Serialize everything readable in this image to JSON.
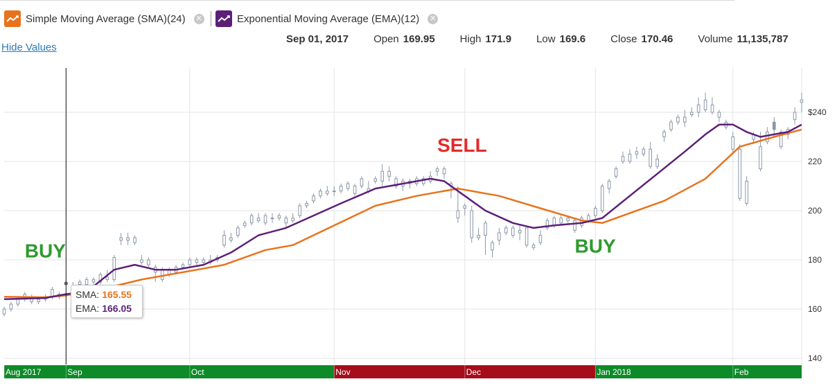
{
  "legend": {
    "sma": {
      "label": "Simple Moving Average (SMA)(24)",
      "icon": "trend-line-icon",
      "color": "#e8731c"
    },
    "ema": {
      "label": "Exponential Moving Average (EMA)(12)",
      "icon": "trend-line-icon",
      "color": "#5c1f78"
    }
  },
  "hide_values_label": "Hide Values",
  "quote": {
    "date": "Sep 01, 2017",
    "open_label": "Open",
    "open": "169.95",
    "high_label": "High",
    "high": "171.9",
    "low_label": "Low",
    "low": "169.6",
    "close_label": "Close",
    "close": "170.46",
    "volume_label": "Volume",
    "volume": "11,135,787"
  },
  "tooltip": {
    "sma_label": "SMA:",
    "sma_value": "165.55",
    "ema_label": "EMA:",
    "ema_value": "166.05"
  },
  "colors": {
    "sma": "#e8731c",
    "ema": "#5c1f78",
    "candle": "#8a96a8",
    "buy": "#2e9a2e",
    "sell": "#e52a2a",
    "band_green": "#0e8a28",
    "band_red": "#a50d1a"
  },
  "chart_data": {
    "type": "candlestick",
    "ylim": [
      136,
      252
    ],
    "y_ticks": [
      "140",
      "160",
      "180",
      "200",
      "220",
      "$240"
    ],
    "y_tick_values": [
      140,
      160,
      180,
      200,
      220,
      240
    ],
    "x_labels": [
      {
        "label": "Aug 2017",
        "day": 0
      },
      {
        "label": "Sep",
        "day": 9
      },
      {
        "label": "Oct",
        "day": 27
      },
      {
        "label": "Nov",
        "day": 48
      },
      {
        "label": "Dec",
        "day": 67
      },
      {
        "label": "Jan 2018",
        "day": 86
      },
      {
        "label": "Feb",
        "day": 106
      }
    ],
    "days_total": 116,
    "cursor_day": 9,
    "cursor_value": 170.46,
    "signals": [
      {
        "label": "BUY",
        "type": "buy",
        "day": 3,
        "value": 181
      },
      {
        "label": "SELL",
        "type": "sell",
        "day": 63,
        "value": 224
      },
      {
        "label": "BUY",
        "type": "buy",
        "day": 83,
        "value": 183
      }
    ],
    "bands": [
      {
        "from": 0,
        "to": 48,
        "type": "buy"
      },
      {
        "from": 48,
        "to": 86,
        "type": "sell"
      },
      {
        "from": 86,
        "to": 116,
        "type": "buy"
      }
    ],
    "candles": [
      [
        0,
        158,
        160,
        157,
        161
      ],
      [
        1,
        160,
        162,
        159,
        163
      ],
      [
        2,
        162,
        164,
        161,
        165
      ],
      [
        3,
        164,
        166,
        163,
        167
      ],
      [
        4,
        163,
        165,
        162,
        166
      ],
      [
        5,
        163,
        164,
        162,
        165
      ],
      [
        6,
        164,
        165,
        163,
        166
      ],
      [
        7,
        165,
        168,
        164,
        169
      ],
      [
        8,
        165,
        166,
        164,
        167
      ],
      [
        9,
        169.95,
        170.46,
        169.6,
        171.9
      ],
      [
        10,
        168,
        169,
        167,
        171
      ],
      [
        11,
        170,
        171,
        169,
        172
      ],
      [
        12,
        170,
        172,
        169,
        173
      ],
      [
        13,
        171,
        172,
        170,
        173
      ],
      [
        14,
        171,
        174,
        170,
        175
      ],
      [
        15,
        172,
        173,
        171,
        176
      ],
      [
        16,
        172,
        181,
        171,
        182
      ],
      [
        17,
        188,
        189,
        186,
        191
      ],
      [
        18,
        188,
        189,
        186,
        191
      ],
      [
        19,
        187,
        189,
        186,
        190
      ],
      [
        20,
        179,
        180,
        178,
        182
      ],
      [
        21,
        178,
        180,
        177,
        181
      ],
      [
        22,
        175,
        177,
        171,
        178
      ],
      [
        23,
        172,
        176,
        171,
        177
      ],
      [
        24,
        174,
        176,
        173,
        177
      ],
      [
        25,
        175,
        177,
        174,
        178
      ],
      [
        26,
        177,
        178,
        176,
        179
      ],
      [
        27,
        178,
        180,
        177,
        181
      ],
      [
        28,
        179,
        180,
        178,
        181
      ],
      [
        29,
        179,
        180,
        178,
        181
      ],
      [
        30,
        179,
        180,
        178,
        182
      ],
      [
        31,
        180,
        181,
        179,
        182
      ],
      [
        32,
        186,
        190,
        185,
        192
      ],
      [
        33,
        188,
        189,
        187,
        191
      ],
      [
        34,
        190,
        193,
        189,
        194
      ],
      [
        35,
        194,
        195,
        193,
        196
      ],
      [
        36,
        195,
        198,
        194,
        199
      ],
      [
        37,
        196,
        197,
        195,
        199
      ],
      [
        38,
        195,
        198,
        194,
        199
      ],
      [
        39,
        197,
        197,
        195,
        199
      ],
      [
        40,
        197,
        198,
        196,
        199
      ],
      [
        41,
        195,
        197,
        193,
        198
      ],
      [
        42,
        196,
        197,
        195,
        199
      ],
      [
        43,
        198,
        202,
        197,
        203
      ],
      [
        44,
        202,
        203,
        201,
        204
      ],
      [
        45,
        204,
        206,
        203,
        207
      ],
      [
        46,
        206,
        208,
        205,
        209
      ],
      [
        47,
        207,
        208,
        206,
        210
      ],
      [
        48,
        208,
        208,
        206,
        210
      ],
      [
        49,
        208,
        210,
        207,
        211
      ],
      [
        50,
        209,
        211,
        208,
        212
      ],
      [
        51,
        207,
        210,
        206,
        211
      ],
      [
        52,
        210,
        213,
        209,
        214
      ],
      [
        53,
        208,
        209,
        207,
        212
      ],
      [
        54,
        212,
        213,
        211,
        214
      ],
      [
        55,
        212,
        216,
        210,
        219
      ],
      [
        56,
        214,
        216,
        212,
        218
      ],
      [
        57,
        210,
        213,
        209,
        214
      ],
      [
        58,
        210,
        212,
        208,
        213
      ],
      [
        59,
        211,
        212,
        209,
        213
      ],
      [
        60,
        211,
        213,
        210,
        214
      ],
      [
        61,
        211,
        213,
        210,
        214
      ],
      [
        62,
        212,
        214,
        211,
        216
      ],
      [
        63,
        216,
        217,
        214,
        218
      ],
      [
        64,
        215,
        217,
        213,
        218
      ],
      [
        65,
        210,
        211,
        205,
        212
      ],
      [
        66,
        197,
        200,
        195,
        210
      ],
      [
        67,
        201,
        202,
        198,
        203
      ],
      [
        68,
        189,
        200,
        187,
        202
      ],
      [
        69,
        189,
        190,
        188,
        193
      ],
      [
        70,
        190,
        195,
        182,
        196
      ],
      [
        71,
        184,
        187,
        181,
        188
      ],
      [
        72,
        188,
        191,
        186,
        193
      ],
      [
        73,
        191,
        193,
        190,
        194
      ],
      [
        74,
        190,
        193,
        189,
        194
      ],
      [
        75,
        191,
        192,
        188,
        194
      ],
      [
        76,
        186,
        193,
        185,
        193
      ],
      [
        77,
        185,
        186,
        184,
        187
      ],
      [
        78,
        187,
        190,
        186,
        192
      ],
      [
        79,
        193,
        196,
        192,
        197
      ],
      [
        80,
        194,
        197,
        193,
        198
      ],
      [
        81,
        195,
        197,
        194,
        198
      ],
      [
        82,
        196,
        197,
        195,
        198
      ],
      [
        83,
        192,
        196,
        191,
        197
      ],
      [
        84,
        194,
        197,
        193,
        198
      ],
      [
        85,
        196,
        198,
        195,
        199
      ],
      [
        86,
        198,
        201,
        197,
        202
      ],
      [
        87,
        200,
        210,
        199,
        211
      ],
      [
        88,
        209,
        212,
        207,
        213
      ],
      [
        89,
        214,
        217,
        213,
        218
      ],
      [
        90,
        220,
        222,
        219,
        224
      ],
      [
        91,
        220,
        223,
        219,
        225
      ],
      [
        92,
        223,
        224,
        221,
        226
      ],
      [
        93,
        223,
        225,
        222,
        226
      ],
      [
        94,
        218,
        225,
        217,
        228
      ],
      [
        95,
        218,
        221,
        217,
        223
      ],
      [
        96,
        230,
        232,
        228,
        233
      ],
      [
        97,
        233,
        236,
        232,
        237
      ],
      [
        98,
        236,
        238,
        235,
        239
      ],
      [
        99,
        236,
        238,
        234,
        241
      ],
      [
        100,
        239,
        240,
        238,
        242
      ],
      [
        101,
        240,
        243,
        238,
        246
      ],
      [
        102,
        241,
        245,
        240,
        248
      ],
      [
        103,
        240,
        243,
        239,
        246
      ],
      [
        104,
        238,
        240,
        236,
        241
      ],
      [
        105,
        234,
        236,
        233,
        237
      ],
      [
        106,
        225,
        230,
        223,
        232
      ],
      [
        107,
        205,
        225,
        204,
        227
      ],
      [
        108,
        203,
        212,
        202,
        214
      ],
      [
        109,
        229,
        231,
        227,
        232
      ],
      [
        110,
        217,
        226,
        216,
        232
      ],
      [
        111,
        228,
        232,
        227,
        234
      ],
      [
        112,
        236,
        233,
        230,
        238
      ],
      [
        113,
        226,
        232,
        225,
        233
      ],
      [
        114,
        231,
        233,
        229,
        234
      ],
      [
        115,
        237,
        240,
        235,
        242
      ],
      [
        116,
        244,
        245,
        240,
        248
      ]
    ],
    "series": [
      {
        "name": "Simple Moving Average (SMA)(24)",
        "key": "sma",
        "points": [
          [
            0,
            165
          ],
          [
            6,
            164.8
          ],
          [
            9,
            165.55
          ],
          [
            14,
            168
          ],
          [
            20,
            172
          ],
          [
            26,
            175
          ],
          [
            32,
            178
          ],
          [
            38,
            184
          ],
          [
            42,
            186
          ],
          [
            48,
            194
          ],
          [
            54,
            202
          ],
          [
            60,
            206
          ],
          [
            66,
            209
          ],
          [
            72,
            206
          ],
          [
            78,
            201
          ],
          [
            84,
            196
          ],
          [
            87,
            195
          ],
          [
            91,
            199
          ],
          [
            96,
            204
          ],
          [
            102,
            213
          ],
          [
            107,
            226
          ],
          [
            112,
            230
          ],
          [
            116,
            233
          ]
        ]
      },
      {
        "name": "Exponential Moving Average (EMA)(12)",
        "key": "ema",
        "points": [
          [
            0,
            164
          ],
          [
            6,
            164.5
          ],
          [
            9,
            166.05
          ],
          [
            12,
            167
          ],
          [
            16,
            176
          ],
          [
            19,
            178
          ],
          [
            22,
            176
          ],
          [
            25,
            176
          ],
          [
            29,
            178
          ],
          [
            33,
            183
          ],
          [
            37,
            190
          ],
          [
            41,
            193
          ],
          [
            45,
            198
          ],
          [
            49,
            203
          ],
          [
            54,
            209
          ],
          [
            58,
            211
          ],
          [
            62,
            213
          ],
          [
            64,
            212
          ],
          [
            67,
            206
          ],
          [
            70,
            200
          ],
          [
            74,
            195
          ],
          [
            77,
            193
          ],
          [
            80,
            194
          ],
          [
            84,
            195
          ],
          [
            87,
            197
          ],
          [
            91,
            206
          ],
          [
            95,
            215
          ],
          [
            99,
            224
          ],
          [
            102,
            231
          ],
          [
            104,
            235
          ],
          [
            106,
            235
          ],
          [
            108,
            232
          ],
          [
            110,
            230
          ],
          [
            112,
            231
          ],
          [
            114,
            232
          ],
          [
            116,
            235
          ]
        ]
      }
    ]
  }
}
